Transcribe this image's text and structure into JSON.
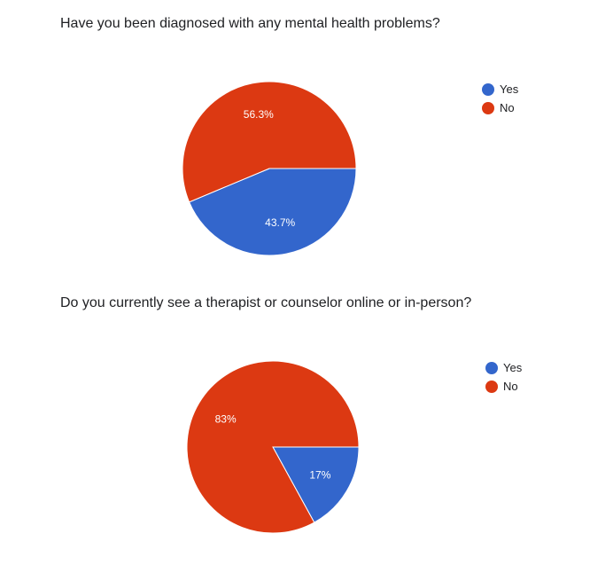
{
  "chart_data": [
    {
      "type": "pie",
      "title": "Have you been diagnosed with any mental health problems?",
      "categories": [
        "Yes",
        "No"
      ],
      "values": [
        43.7,
        56.3
      ],
      "data_labels": [
        "43.7%",
        "56.3%"
      ],
      "colors": [
        "#3366CC",
        "#DC3912"
      ],
      "legend_position": "right",
      "start": "Yes slice begins at the right (3 o'clock) and runs clockwise"
    },
    {
      "type": "pie",
      "title": "Do you currently see a therapist or counselor online or in-person?",
      "categories": [
        "Yes",
        "No"
      ],
      "values": [
        17,
        83
      ],
      "data_labels": [
        "17%",
        "83%"
      ],
      "colors": [
        "#3366CC",
        "#DC3912"
      ],
      "legend_position": "right",
      "start": "Yes slice begins at the right (3 o'clock) and runs clockwise"
    }
  ]
}
